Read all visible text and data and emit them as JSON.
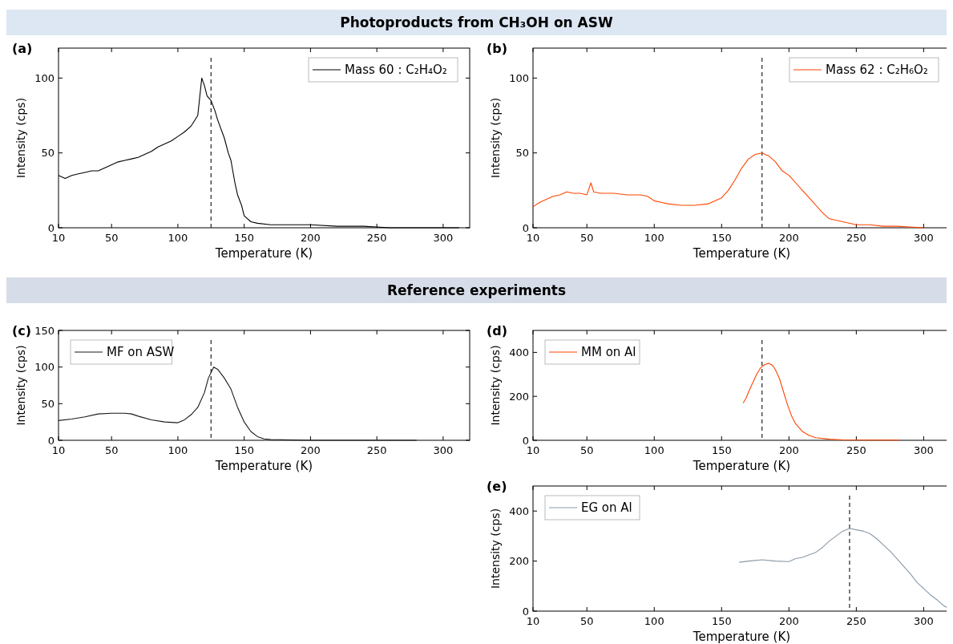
{
  "chart_data": [
    {
      "type": "line",
      "title": "Photoproducts from CH₃OH on ASW",
      "xlabel": "Temperature (K)",
      "ylabel": "Intensity (cps)",
      "annotations": [
        "(a)"
      ],
      "xlim": [
        10,
        320
      ],
      "xticks": [
        10,
        50,
        100,
        150,
        200,
        250,
        300
      ],
      "ylim": [
        0,
        120
      ],
      "yticks": [
        0,
        50,
        100
      ],
      "legend": "top right",
      "ref_lines": [
        {
          "axis": "x",
          "value": 125,
          "color": "#333333",
          "line_style": "dashed"
        }
      ],
      "series": [
        {
          "name": "Mass 60 : C₂H₄O₂",
          "color": "#000000",
          "x": [
            10,
            15,
            20,
            25,
            30,
            35,
            40,
            45,
            50,
            55,
            60,
            65,
            70,
            75,
            80,
            85,
            90,
            95,
            100,
            105,
            110,
            115,
            118,
            120,
            122,
            125,
            128,
            130,
            135,
            138,
            140,
            143,
            145,
            148,
            150,
            155,
            160,
            170,
            180,
            200,
            220,
            240,
            260,
            280,
            300,
            312
          ],
          "values": [
            35,
            33,
            35,
            36,
            37,
            38,
            38,
            40,
            42,
            44,
            45,
            46,
            47,
            49,
            51,
            54,
            56,
            58,
            61,
            64,
            68,
            75,
            100,
            95,
            88,
            85,
            78,
            72,
            60,
            50,
            45,
            30,
            22,
            15,
            8,
            4,
            3,
            2,
            2,
            2,
            1,
            1,
            0,
            0,
            0,
            0
          ]
        }
      ]
    },
    {
      "type": "line",
      "xlabel": "Temperature (K)",
      "ylabel": "Intensity (cps)",
      "annotations": [
        "(b)"
      ],
      "xlim": [
        10,
        320
      ],
      "xticks": [
        10,
        50,
        100,
        150,
        200,
        250,
        300
      ],
      "ylim": [
        0,
        120
      ],
      "yticks": [
        0,
        50,
        100
      ],
      "legend": "top right",
      "ref_lines": [
        {
          "axis": "x",
          "value": 180,
          "color": "#333333",
          "line_style": "dashed"
        }
      ],
      "series": [
        {
          "name": "Mass 62 : C₂H₆O₂",
          "color": "#ff4500",
          "x": [
            10,
            15,
            20,
            25,
            30,
            35,
            40,
            45,
            50,
            53,
            55,
            60,
            70,
            80,
            90,
            95,
            100,
            105,
            110,
            120,
            130,
            140,
            150,
            155,
            160,
            165,
            170,
            175,
            180,
            185,
            190,
            195,
            200,
            205,
            210,
            215,
            220,
            225,
            230,
            240,
            250,
            260,
            270,
            280,
            300
          ],
          "values": [
            14,
            17,
            19,
            21,
            22,
            24,
            23,
            23,
            22,
            30,
            24,
            23,
            23,
            22,
            22,
            21,
            18,
            17,
            16,
            15,
            15,
            16,
            20,
            25,
            32,
            40,
            46,
            49,
            50,
            48,
            44,
            38,
            35,
            30,
            25,
            20,
            15,
            10,
            6,
            4,
            2,
            2,
            1,
            1,
            0
          ]
        }
      ]
    },
    {
      "type": "line",
      "title": "Reference experiments",
      "xlabel": "Temperature (K)",
      "ylabel": "Intensity (cps)",
      "annotations": [
        "(c)"
      ],
      "xlim": [
        10,
        320
      ],
      "xticks": [
        10,
        50,
        100,
        150,
        200,
        250,
        300
      ],
      "ylim": [
        0,
        150
      ],
      "yticks": [
        0,
        50,
        100,
        150
      ],
      "legend": "top left",
      "ref_lines": [
        {
          "axis": "x",
          "value": 125,
          "color": "#333333",
          "line_style": "dashed"
        }
      ],
      "series": [
        {
          "name": "MF on ASW",
          "color": "#1a1a1a",
          "x": [
            10,
            20,
            30,
            40,
            50,
            60,
            65,
            70,
            80,
            90,
            100,
            105,
            110,
            115,
            120,
            123,
            127,
            130,
            135,
            140,
            145,
            150,
            155,
            160,
            165,
            170,
            200,
            250,
            280
          ],
          "values": [
            27,
            29,
            32,
            36,
            37,
            37,
            36,
            33,
            28,
            25,
            24,
            28,
            35,
            45,
            65,
            85,
            100,
            97,
            85,
            70,
            45,
            25,
            12,
            5,
            2,
            1,
            0,
            0,
            0
          ]
        }
      ]
    },
    {
      "type": "line",
      "xlabel": "Temperature (K)",
      "ylabel": "Intensity (cps)",
      "annotations": [
        "(d)"
      ],
      "xlim": [
        10,
        320
      ],
      "xticks": [
        10,
        50,
        100,
        150,
        200,
        250,
        300
      ],
      "ylim": [
        0,
        500
      ],
      "yticks": [
        0,
        200,
        400
      ],
      "legend": "top left",
      "ref_lines": [
        {
          "axis": "x",
          "value": 180,
          "color": "#333333",
          "line_style": "dashed"
        }
      ],
      "series": [
        {
          "name": "MM on Al",
          "color": "#ff4500",
          "x": [
            166,
            168,
            170,
            173,
            176,
            179,
            182,
            185,
            188,
            190,
            193,
            196,
            199,
            202,
            205,
            210,
            215,
            220,
            230,
            240,
            260,
            282
          ],
          "values": [
            170,
            190,
            220,
            260,
            300,
            330,
            345,
            350,
            340,
            320,
            280,
            220,
            160,
            110,
            75,
            40,
            22,
            12,
            5,
            2,
            1,
            1
          ]
        }
      ]
    },
    {
      "type": "line",
      "xlabel": "Temperature (K)",
      "ylabel": "Intensity (cps)",
      "annotations": [
        "(e)"
      ],
      "xlim": [
        10,
        320
      ],
      "xticks": [
        10,
        50,
        100,
        150,
        200,
        250,
        300
      ],
      "ylim": [
        0,
        500
      ],
      "yticks": [
        0,
        200,
        400
      ],
      "legend": "top left",
      "ref_lines": [
        {
          "axis": "x",
          "value": 245,
          "color": "#333333",
          "line_style": "dashed"
        }
      ],
      "series": [
        {
          "name": "EG on Al",
          "color": "#8a99a8",
          "x": [
            163,
            170,
            180,
            190,
            200,
            205,
            210,
            215,
            220,
            225,
            230,
            235,
            240,
            245,
            250,
            255,
            260,
            265,
            270,
            275,
            280,
            285,
            290,
            295,
            300,
            305,
            310,
            314,
            318
          ],
          "values": [
            195,
            200,
            205,
            200,
            198,
            210,
            215,
            225,
            235,
            255,
            280,
            300,
            320,
            330,
            325,
            320,
            310,
            290,
            265,
            240,
            210,
            180,
            150,
            115,
            90,
            65,
            45,
            25,
            12
          ]
        }
      ]
    }
  ]
}
